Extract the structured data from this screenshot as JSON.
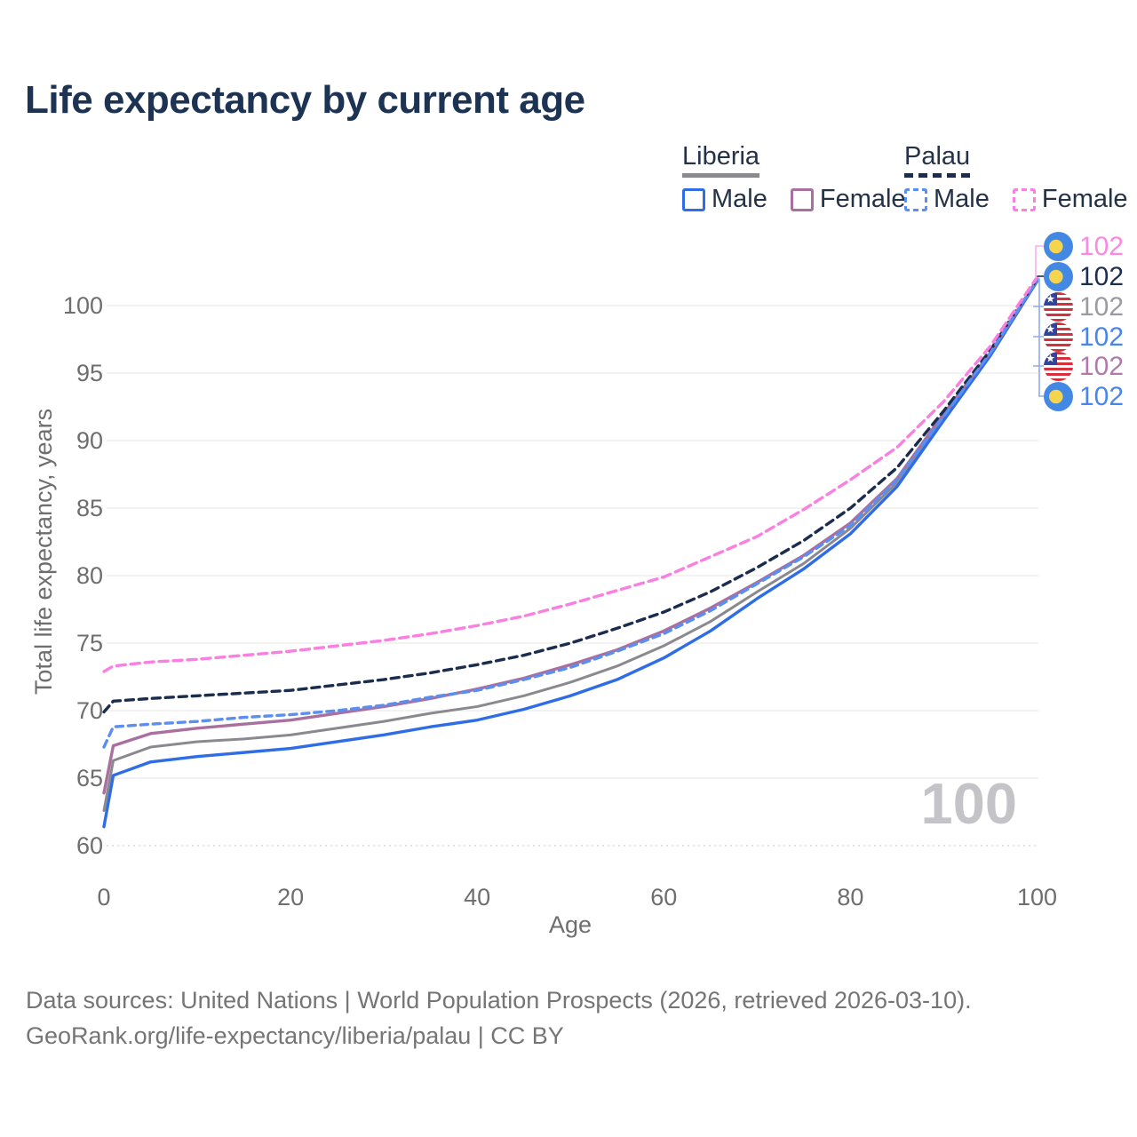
{
  "title": "Life expectancy by current age",
  "watermark": "100",
  "legend": {
    "liberia": {
      "label": "Liberia",
      "male": "Male",
      "female": "Female"
    },
    "palau": {
      "label": "Palau",
      "male": "Male",
      "female": "Female"
    }
  },
  "y_axis": {
    "title": "Total life expectancy, years",
    "ticks": [
      60,
      65,
      70,
      75,
      80,
      85,
      90,
      95,
      100
    ]
  },
  "x_axis": {
    "title": "Age",
    "ticks": [
      0,
      20,
      40,
      60,
      80,
      100
    ]
  },
  "end_labels": [
    {
      "flag": "palau",
      "series": "Palau Female",
      "value": "102",
      "color": "#f98ae2"
    },
    {
      "flag": "palau",
      "series": "Palau Both",
      "value": "102",
      "color": "#1d2f4d"
    },
    {
      "flag": "liberia",
      "series": "Liberia Both",
      "value": "102",
      "color": "#9b9b9f"
    },
    {
      "flag": "liberia",
      "series": "Liberia Male",
      "value": "102",
      "color": "#4a86e8"
    },
    {
      "flag": "liberia",
      "series": "Liberia Female",
      "value": "102",
      "color": "#b279ab"
    },
    {
      "flag": "palau",
      "series": "Palau Male",
      "value": "102",
      "color": "#4a86e8"
    }
  ],
  "footer": {
    "line1": "Data sources: United Nations | World Population Prospects (2026, retrieved 2026-03-10).",
    "line2": "GeoRank.org/life-expectancy/liberia/palau | CC BY"
  },
  "colors": {
    "title_text": "#1d3354",
    "legend_text": "#243248",
    "axis_text": "#6e6e6e",
    "gridline": "#ededed",
    "gridline_60_dotted": "#d8d8d8",
    "watermark": "#c4c4c8",
    "footer_text": "#757575",
    "connector_blue": "#8fabec",
    "connector_pink": "#f6b0e8",
    "palau_flag_blue": "#4389e3",
    "palau_flag_yellow": "#f6d44d",
    "liberia_flag_red": "#d4313d",
    "liberia_flag_blue": "#33439b"
  },
  "chart_data": {
    "type": "line",
    "title": "Life expectancy by current age",
    "xlabel": "Age",
    "ylabel": "Total life expectancy, years",
    "xlim": [
      0,
      100
    ],
    "ylim": [
      60,
      102.5
    ],
    "grid": "horizontal-only",
    "legend_position": "top-right",
    "end_value_label": 102,
    "x": [
      0,
      1,
      5,
      10,
      15,
      20,
      25,
      30,
      35,
      40,
      45,
      50,
      55,
      60,
      65,
      70,
      75,
      80,
      85,
      90,
      95,
      100
    ],
    "series": [
      {
        "name": "Liberia Both",
        "country": "Liberia",
        "sex": "both",
        "style": "solid",
        "color": "#8a8a8e",
        "values": [
          62.6,
          66.3,
          67.3,
          67.7,
          67.9,
          68.2,
          68.7,
          69.2,
          69.8,
          70.3,
          71.1,
          72.1,
          73.3,
          74.8,
          76.6,
          78.8,
          80.9,
          83.5,
          86.9,
          91.7,
          96.4,
          101.9
        ]
      },
      {
        "name": "Liberia Male",
        "country": "Liberia",
        "sex": "male",
        "style": "solid",
        "color": "#2e6de6",
        "values": [
          61.4,
          65.2,
          66.2,
          66.6,
          66.9,
          67.2,
          67.7,
          68.2,
          68.8,
          69.3,
          70.1,
          71.1,
          72.3,
          73.9,
          75.9,
          78.3,
          80.5,
          83.1,
          86.6,
          91.5,
          96.3,
          101.8
        ]
      },
      {
        "name": "Liberia Female",
        "country": "Liberia",
        "sex": "female",
        "style": "solid",
        "color": "#a9709f",
        "values": [
          63.9,
          67.4,
          68.3,
          68.7,
          69.0,
          69.3,
          69.8,
          70.3,
          70.9,
          71.6,
          72.4,
          73.4,
          74.5,
          75.9,
          77.6,
          79.5,
          81.5,
          83.9,
          87.2,
          92.0,
          96.5,
          101.9
        ]
      },
      {
        "name": "Palau Both",
        "country": "Palau",
        "sex": "both",
        "style": "dashed",
        "color": "#1b2d4f",
        "values": [
          69.9,
          70.7,
          70.9,
          71.1,
          71.3,
          71.5,
          71.9,
          72.3,
          72.8,
          73.4,
          74.1,
          75.0,
          76.1,
          77.3,
          78.8,
          80.6,
          82.6,
          85.0,
          88.0,
          92.2,
          96.7,
          102.0
        ]
      },
      {
        "name": "Palau Male",
        "country": "Palau",
        "sex": "male",
        "style": "dashed",
        "color": "#5a8ef0",
        "values": [
          67.3,
          68.8,
          69.0,
          69.2,
          69.5,
          69.7,
          70.0,
          70.4,
          71.0,
          71.5,
          72.3,
          73.2,
          74.4,
          75.7,
          77.4,
          79.4,
          81.4,
          83.7,
          87.1,
          91.8,
          96.5,
          101.9
        ]
      },
      {
        "name": "Palau Female",
        "country": "Palau",
        "sex": "female",
        "style": "dashed",
        "color": "#f97fe0",
        "values": [
          72.9,
          73.3,
          73.6,
          73.8,
          74.1,
          74.4,
          74.8,
          75.2,
          75.7,
          76.3,
          77.0,
          77.9,
          78.9,
          79.9,
          81.4,
          82.9,
          84.9,
          87.1,
          89.5,
          92.9,
          97.0,
          102.1
        ]
      }
    ]
  }
}
